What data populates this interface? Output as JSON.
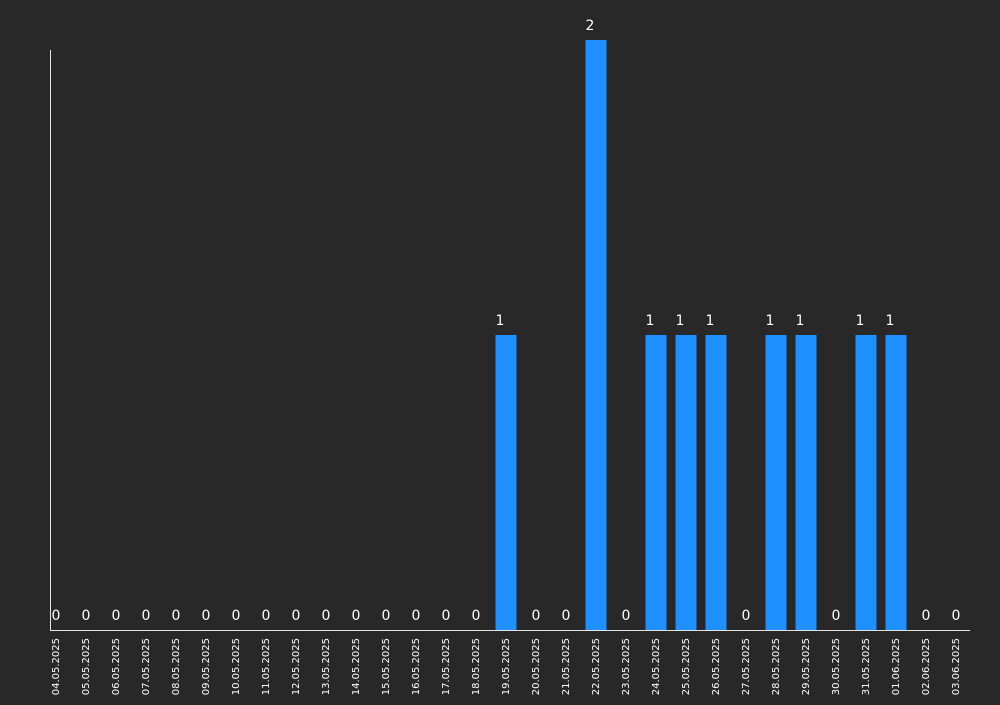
{
  "chart_data": {
    "type": "bar",
    "title": "",
    "xlabel": "",
    "ylabel": "",
    "ylim": [
      0,
      2
    ],
    "grid": false,
    "categories": [
      "04.05.2025",
      "05.05.2025",
      "06.05.2025",
      "07.05.2025",
      "08.05.2025",
      "09.05.2025",
      "10.05.2025",
      "11.05.2025",
      "12.05.2025",
      "13.05.2025",
      "14.05.2025",
      "15.05.2025",
      "16.05.2025",
      "17.05.2025",
      "18.05.2025",
      "19.05.2025",
      "20.05.2025",
      "21.05.2025",
      "22.05.2025",
      "23.05.2025",
      "24.05.2025",
      "25.05.2025",
      "26.05.2025",
      "27.05.2025",
      "28.05.2025",
      "29.05.2025",
      "30.05.2025",
      "31.05.2025",
      "01.06.2025",
      "02.06.2025",
      "03.06.2025"
    ],
    "values": [
      0,
      0,
      0,
      0,
      0,
      0,
      0,
      0,
      0,
      0,
      0,
      0,
      0,
      0,
      0,
      1,
      0,
      0,
      2,
      0,
      1,
      1,
      1,
      0,
      1,
      1,
      0,
      1,
      1,
      0,
      0
    ],
    "colors": {
      "background": "#282828",
      "bar": "#1e90ff",
      "axis": "#e6e6e6",
      "text": "#ffffff"
    }
  }
}
